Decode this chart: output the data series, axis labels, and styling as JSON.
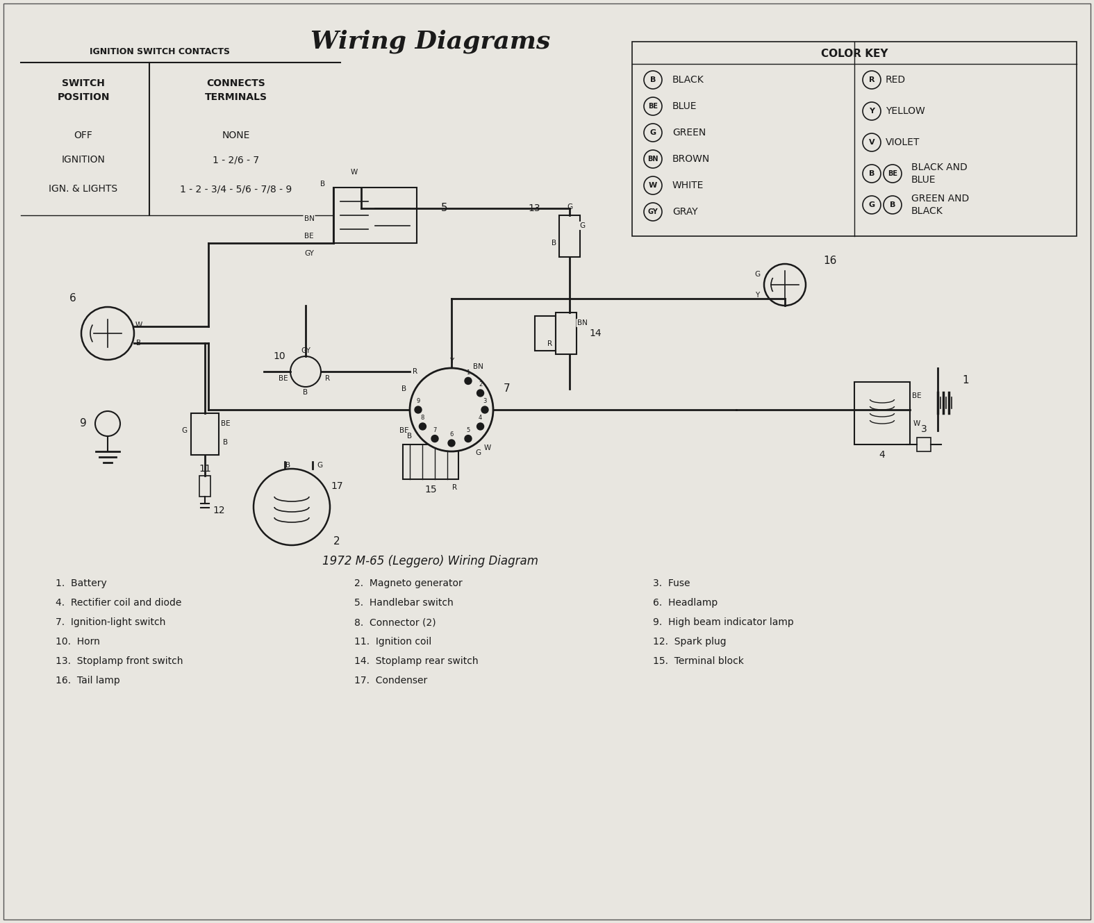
{
  "title": "Wiring Diagrams",
  "title_subtitle": "1972 M-65 (Leggero) Wiring Diagram",
  "bg_color": "#e8e6e0",
  "text_color": "#1a1a1a",
  "ignition_table": {
    "header": "IGNITION SWITCH CONTACTS",
    "col1_header": "SWITCH\nPOSITION",
    "col2_header": "CONNECTS\nTERMINALS",
    "rows": [
      [
        "OFF",
        "NONE"
      ],
      [
        "IGNITION",
        "1 - 2/6 - 7"
      ],
      [
        "IGN. & LIGHTS",
        "1 - 2 - 3/4 - 5/6 - 7/8 - 9"
      ]
    ]
  },
  "color_key": {
    "header": "COLOR KEY",
    "left": [
      {
        "symbol": "B",
        "label": "BLACK"
      },
      {
        "symbol": "BE",
        "label": "BLUE"
      },
      {
        "symbol": "G",
        "label": "GREEN"
      },
      {
        "symbol": "BN",
        "label": "BROWN"
      },
      {
        "symbol": "W",
        "label": "WHITE"
      },
      {
        "symbol": "GY",
        "label": "GRAY"
      }
    ],
    "right": [
      {
        "symbol": "R",
        "label": "RED"
      },
      {
        "symbol": "Y",
        "label": "YELLOW"
      },
      {
        "symbol": "V",
        "label": "VIOLET"
      },
      {
        "symbol": "B BE",
        "label": "BLACK AND\nBLUE"
      },
      {
        "symbol": "G B",
        "label": "GREEN AND\nBLACK"
      }
    ]
  },
  "legend_items": [
    "1.  Battery",
    "2.  Magneto generator",
    "3.  Fuse",
    "4.  Rectifier coil and diode",
    "5.  Handlebar switch",
    "6.  Headlamp",
    "7.  Ignition-light switch",
    "8.  Connector (2)",
    "9.  High beam indicator lamp",
    "10.  Horn",
    "11.  Ignition coil",
    "12.  Spark plug",
    "13.  Stoplamp front switch",
    "14.  Stoplamp rear switch",
    "15.  Terminal block",
    "16.  Tail lamp",
    "17.  Condenser"
  ]
}
